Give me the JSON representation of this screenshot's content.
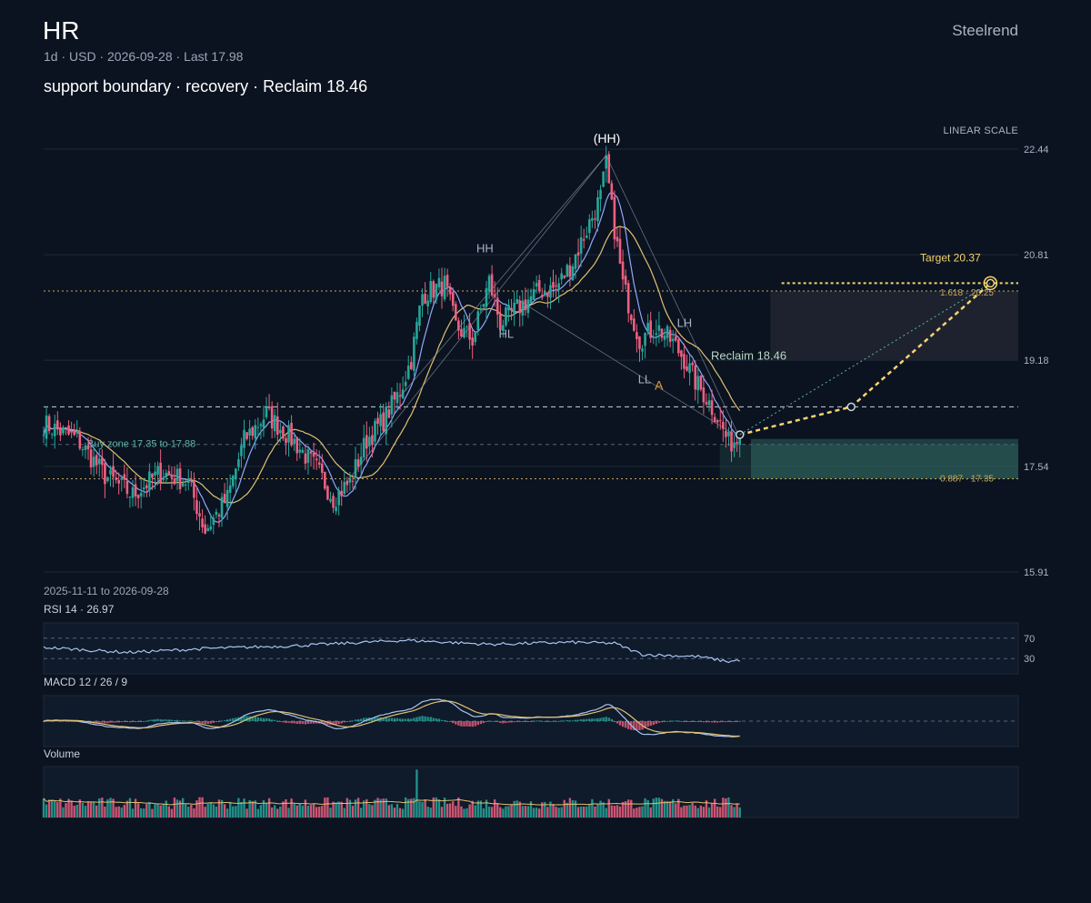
{
  "header": {
    "symbol": "HR",
    "brand": "Steelrend",
    "subline": "1d · USD · 2026-09-28 · Last 17.98",
    "headline": "support boundary · recovery · Reclaim 18.46",
    "scale_label": "LINEAR SCALE",
    "date_range": "2025-11-11 to 2026-09-28"
  },
  "colors": {
    "background": "#0b1320",
    "up": "#26a69a",
    "down": "#ef5f7f",
    "sma_fast": "#8fa8ff",
    "sma_slow": "#e0c070",
    "target": "#f5d36e",
    "zone": "#3e8f80"
  },
  "chart_data": {
    "type": "candlestick",
    "ylim": [
      15.91,
      22.44
    ],
    "yticks": [
      "22.44",
      "20.81",
      "19.18",
      "17.54",
      "15.91"
    ],
    "last_price": 17.98,
    "levels": {
      "buy_zone_label": "Buy zone 17.35 to 17.88",
      "buy_zone": [
        17.35,
        17.88
      ],
      "reclaim_label": "Reclaim 18.46",
      "reclaim": 18.46,
      "target_label": "Target 20.37",
      "target": 20.37,
      "fib_618_label": "1.618 · 20.25",
      "fib_618": 20.25,
      "fib_887_label": "0.887 · 17.35",
      "fib_887": 17.35,
      "resistance_band": [
        19.18,
        20.25
      ]
    },
    "swing_labels": [
      "(HH)",
      "HH",
      "HL",
      "LH",
      "LL",
      "A"
    ],
    "path": [
      {
        "label": "start",
        "bar": 250,
        "y": 18.03
      },
      {
        "label": "reclaim",
        "bar": 290,
        "y": 18.46
      },
      {
        "label": "target",
        "bar": 340,
        "y": 20.37
      }
    ],
    "ohlc_anchors": [
      [
        0,
        18.2
      ],
      [
        12,
        17.96
      ],
      [
        22,
        17.4
      ],
      [
        32,
        17.1
      ],
      [
        42,
        17.45
      ],
      [
        52,
        17.3
      ],
      [
        58,
        16.55
      ],
      [
        66,
        17.05
      ],
      [
        72,
        17.95
      ],
      [
        80,
        18.35
      ],
      [
        90,
        17.92
      ],
      [
        98,
        17.5
      ],
      [
        104,
        17.05
      ],
      [
        110,
        17.3
      ],
      [
        116,
        17.95
      ],
      [
        122,
        18.25
      ],
      [
        128,
        18.7
      ],
      [
        132,
        19.2
      ],
      [
        136,
        20.2
      ],
      [
        144,
        20.35
      ],
      [
        148,
        19.7
      ],
      [
        154,
        19.5
      ],
      [
        160,
        20.4
      ],
      [
        164,
        19.75
      ],
      [
        172,
        20.05
      ],
      [
        178,
        20.25
      ],
      [
        184,
        20.3
      ],
      [
        190,
        20.7
      ],
      [
        194,
        21.1
      ],
      [
        200,
        21.7
      ],
      [
        202,
        22.2
      ],
      [
        204,
        21.5
      ],
      [
        208,
        20.35
      ],
      [
        214,
        19.5
      ],
      [
        220,
        19.7
      ],
      [
        226,
        19.45
      ],
      [
        230,
        19.2
      ],
      [
        234,
        18.85
      ],
      [
        238,
        18.6
      ],
      [
        242,
        18.3
      ],
      [
        246,
        17.9
      ],
      [
        250,
        17.98
      ]
    ],
    "rsi": {
      "label": "RSI 14 · 26.97",
      "last": 26.97,
      "levels": [
        "70",
        "30"
      ],
      "anchors": [
        [
          0,
          52
        ],
        [
          30,
          42
        ],
        [
          60,
          50
        ],
        [
          90,
          55
        ],
        [
          130,
          66
        ],
        [
          160,
          58
        ],
        [
          190,
          62
        ],
        [
          205,
          60
        ],
        [
          215,
          38
        ],
        [
          235,
          34
        ],
        [
          246,
          24
        ],
        [
          250,
          27
        ]
      ]
    },
    "macd": {
      "label": "MACD 12 / 26 / 9",
      "params": [
        12,
        26,
        9
      ]
    },
    "volume": {
      "label": "Volume",
      "spike_bar": 134
    }
  }
}
